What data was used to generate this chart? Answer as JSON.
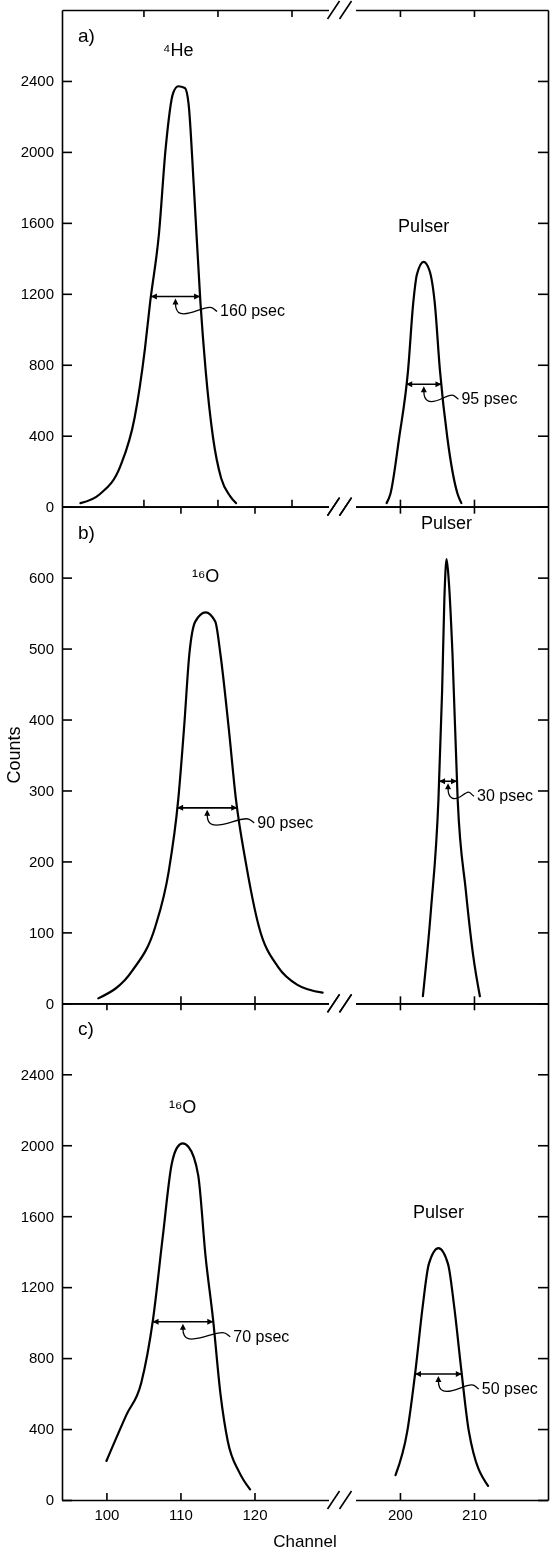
{
  "chart_data": [
    {
      "type": "line",
      "xlim": [
        94,
        130
      ],
      "xticks": [
        {
          "value": 105,
          "label": null
        },
        {
          "value": 115,
          "label": null
        },
        {
          "value": 125,
          "label": null
        }
      ],
      "ylim": [
        0,
        2800
      ],
      "yticks": [
        0,
        400,
        800,
        1200,
        1600,
        2000,
        2400
      ],
      "tick_labels": "y",
      "series": [
        {
          "color": "#000000",
          "x": [
            96.5,
            99.1,
            101.9,
            103.8,
            105.2,
            105.9,
            107.1,
            108.0,
            109.0,
            109.7,
            110.6,
            111.1,
            111.8,
            112.7,
            113.4,
            114.4,
            115.5,
            116.7,
            117.5
          ],
          "values": [
            20,
            70,
            230,
            500,
            890,
            1150,
            1540,
            2020,
            2330,
            2370,
            2360,
            2270,
            1810,
            1150,
            770,
            390,
            160,
            60,
            20
          ]
        }
      ],
      "annotations": [
        "a)",
        "⁴He",
        "160 psec"
      ]
    },
    {
      "type": "line",
      "xlim": [
        194,
        220
      ],
      "xticks": [
        {
          "value": 200,
          "label": null
        },
        {
          "value": 210,
          "label": null
        }
      ],
      "ylim": [
        0,
        2800
      ],
      "yticks": [
        {
          "value": 0,
          "label": null
        },
        {
          "value": 400,
          "label": null
        },
        {
          "value": 800,
          "label": null
        },
        {
          "value": 1200,
          "label": null
        },
        {
          "value": 1600,
          "label": null
        },
        {
          "value": 2000,
          "label": null
        },
        {
          "value": 2400,
          "label": null
        }
      ],
      "tick_labels": false,
      "series": [
        {
          "color": "#000000",
          "x": [
            198.2,
            198.7,
            199.9,
            201.1,
            201.8,
            202.3,
            203.2,
            204.0,
            204.7,
            205.4,
            206.4,
            207.8,
            208.3
          ],
          "values": [
            20,
            70,
            390,
            770,
            1150,
            1310,
            1380,
            1330,
            1150,
            770,
            390,
            70,
            20
          ]
        }
      ],
      "annotations": [
        "Pulser",
        "95 psec"
      ]
    },
    {
      "type": "line",
      "ylabel": "Counts",
      "xlim": [
        94,
        130
      ],
      "xticks": [
        {
          "value": 110,
          "label": null
        },
        {
          "value": 120,
          "label": null
        }
      ],
      "ylim": [
        0,
        700
      ],
      "yticks": [
        0,
        100,
        200,
        300,
        400,
        500,
        600
      ],
      "tick_labels": "y",
      "series": [
        {
          "color": "#000000",
          "x": [
            98.9,
            103.5,
            106.6,
            108.4,
            109.7,
            110.5,
            111.2,
            112.0,
            113.4,
            114.7,
            115.4,
            116.5,
            117.5,
            118.8,
            120.6,
            123.2,
            125.8,
            129.2
          ],
          "values": [
            7,
            46,
            108,
            185,
            287,
            390,
            492,
            538,
            551,
            538,
            492,
            390,
            287,
            200,
            108,
            51,
            26,
            15
          ]
        }
      ],
      "annotations": [
        "b)",
        "¹⁶O",
        "90 psec"
      ]
    },
    {
      "type": "line",
      "xlim": [
        194,
        220
      ],
      "xticks": [
        {
          "value": 200,
          "label": null
        },
        {
          "value": 210,
          "label": null
        }
      ],
      "ylim": [
        0,
        700
      ],
      "yticks": [
        {
          "value": 0,
          "label": null
        },
        {
          "value": 100,
          "label": null
        },
        {
          "value": 200,
          "label": null
        },
        {
          "value": 300,
          "label": null
        },
        {
          "value": 400,
          "label": null
        },
        {
          "value": 500,
          "label": null
        },
        {
          "value": 600,
          "label": null
        }
      ],
      "tick_labels": false,
      "series": [
        {
          "color": "#000000",
          "x": [
            203.1,
            204.2,
            205.2,
            205.7,
            206.0,
            206.3,
            206.6,
            207.1,
            207.8,
            208.9,
            209.9,
            210.8
          ],
          "values": [
            10,
            133,
            287,
            441,
            569,
            626,
            595,
            492,
            287,
            159,
            67,
            10
          ]
        }
      ],
      "annotations": [
        "Pulser",
        "30 psec"
      ]
    },
    {
      "type": "line",
      "xlabel": "Channel",
      "xlim": [
        94,
        130
      ],
      "xticks": [
        100,
        110,
        120
      ],
      "ylim": [
        0,
        2800
      ],
      "yticks": [
        0,
        400,
        800,
        1200,
        1600,
        2000,
        2400
      ],
      "series": [
        {
          "color": "#000000",
          "x": [
            100,
            102.7,
            104.7,
            106.3,
            107.6,
            108.8,
            109.6,
            110.3,
            111.1,
            112.4,
            113.4,
            114.4,
            115.4,
            116.4,
            117.9,
            119.4
          ],
          "values": [
            220,
            480,
            660,
            1020,
            1480,
            1890,
            1990,
            2010,
            1990,
            1830,
            1370,
            1020,
            600,
            330,
            160,
            60
          ]
        }
      ],
      "annotations": [
        "c)",
        "¹⁶O",
        "70 psec"
      ]
    },
    {
      "type": "line",
      "xlim": [
        194,
        220
      ],
      "xticks": [
        200,
        210
      ],
      "ylim": [
        0,
        2800
      ],
      "yticks": [
        {
          "value": 0,
          "label": null
        },
        {
          "value": 400,
          "label": null
        },
        {
          "value": 800,
          "label": null
        },
        {
          "value": 1200,
          "label": null
        },
        {
          "value": 1600,
          "label": null
        },
        {
          "value": 2000,
          "label": null
        },
        {
          "value": 2400,
          "label": null
        }
      ],
      "tick_labels": "x",
      "series": [
        {
          "color": "#000000",
          "x": [
            199.4,
            201.0,
            202.1,
            203.1,
            203.9,
            205.2,
            206.5,
            207.3,
            208.3,
            209.3,
            211.9
          ],
          "values": [
            140,
            390,
            730,
            1100,
            1330,
            1420,
            1330,
            1100,
            730,
            390,
            80
          ]
        }
      ],
      "annotations": [
        "Pulser",
        "50 psec"
      ]
    }
  ]
}
